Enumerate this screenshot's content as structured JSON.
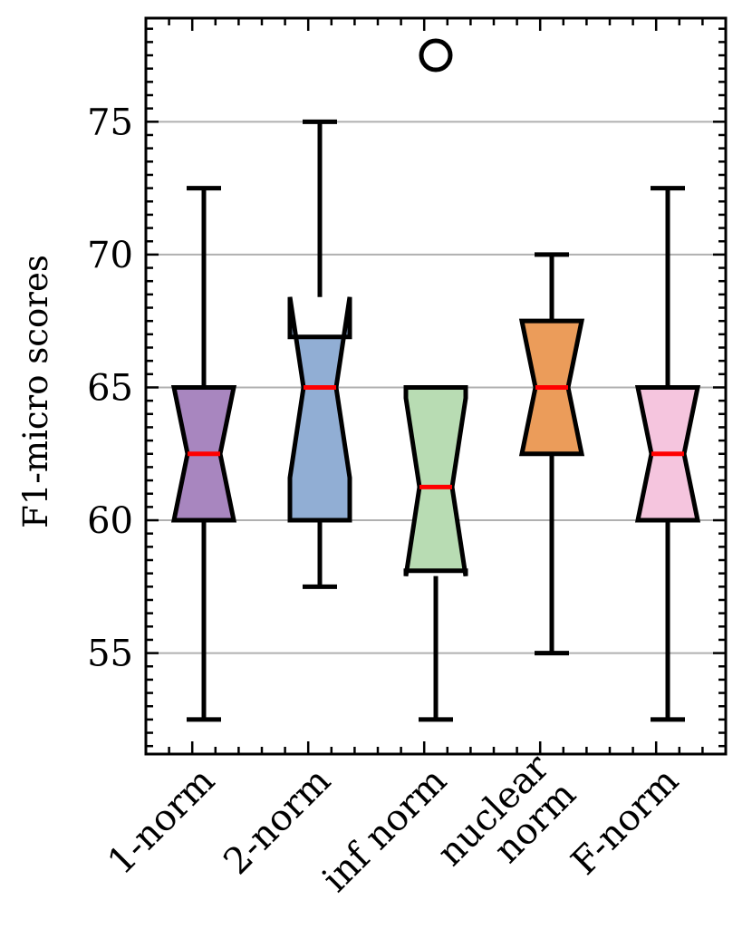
{
  "chart_data": {
    "type": "box",
    "ylabel": "F1-micro scores",
    "xlabel": "",
    "title": "",
    "ylim": [
      51.2,
      78.9
    ],
    "yticks": [
      55,
      60,
      65,
      70,
      75
    ],
    "grid": "horizontal",
    "notched": true,
    "median_color": "#ff0000",
    "categories": [
      "1-norm",
      "2-norm",
      "inf norm",
      "nuclear norm",
      "F-norm"
    ],
    "category_lines": [
      [
        "1-norm"
      ],
      [
        "2-norm"
      ],
      [
        "inf norm"
      ],
      [
        "nuclear",
        "norm"
      ],
      [
        "F-norm"
      ]
    ],
    "boxes": [
      {
        "name": "1-norm",
        "whisker_low": 52.5,
        "q1": 60.0,
        "median": 62.5,
        "q3": 65.0,
        "whisker_high": 72.5,
        "notch_low": 60.0,
        "notch_high": 65.0,
        "fliers": [],
        "color": "#a886bf"
      },
      {
        "name": "2-norm",
        "whisker_low": 57.5,
        "q1": 60.0,
        "median": 65.0,
        "q3": 66.9,
        "whisker_high": 75.0,
        "notch_low": 61.6,
        "notch_high": 68.4,
        "fliers": [],
        "color": "#91aed4"
      },
      {
        "name": "inf norm",
        "whisker_low": 52.5,
        "q1": 58.1,
        "median": 61.25,
        "q3": 65.0,
        "whisker_high": 65.0,
        "notch_low": 57.9,
        "notch_high": 64.6,
        "fliers": [
          77.5
        ],
        "color": "#b8dcb3"
      },
      {
        "name": "nuclear norm",
        "whisker_low": 55.0,
        "q1": 62.5,
        "median": 65.0,
        "q3": 67.5,
        "whisker_high": 70.0,
        "notch_low": 62.5,
        "notch_high": 67.5,
        "fliers": [],
        "color": "#eb9c5a"
      },
      {
        "name": "F-norm",
        "whisker_low": 52.5,
        "q1": 60.0,
        "median": 62.5,
        "q3": 65.0,
        "whisker_high": 72.5,
        "notch_low": 60.0,
        "notch_high": 65.0,
        "fliers": [],
        "color": "#f5c5de"
      }
    ]
  }
}
